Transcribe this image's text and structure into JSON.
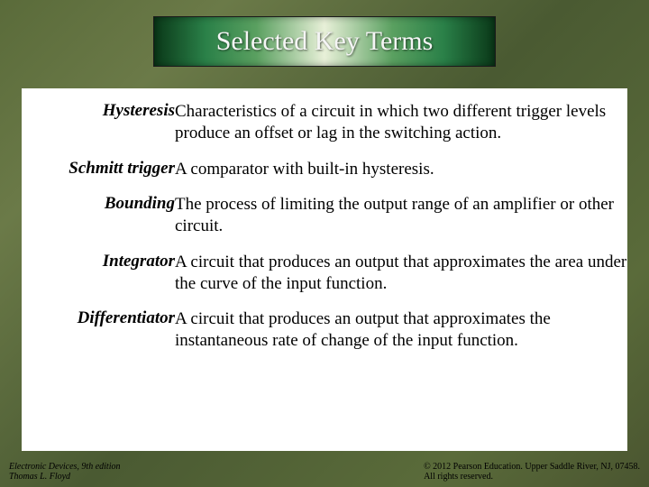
{
  "title": "Selected Key Terms",
  "terms": [
    {
      "term": "Hysteresis",
      "definition": "Characteristics of a circuit in which two different trigger levels produce an offset or lag in the switching action."
    },
    {
      "term": "Schmitt trigger",
      "definition": "A comparator with built-in hysteresis."
    },
    {
      "term": "Bounding",
      "definition": "The process of limiting the output range of an amplifier or other circuit."
    },
    {
      "term": "Integrator",
      "definition": "A circuit that produces an output that approximates the area under the curve of the input function."
    },
    {
      "term": "Differentiator",
      "definition": "A circuit that produces an output that approximates the instantaneous rate of change of the input function."
    }
  ],
  "footer": {
    "left_line1": "Electronic Devices, 9th edition",
    "left_line2": "Thomas L. Floyd",
    "right_line1": "© 2012 Pearson Education. Upper Saddle River, NJ, 07458.",
    "right_line2": "All rights reserved."
  },
  "styling": {
    "slide_width": 720,
    "slide_height": 540,
    "background_gradient": [
      "#5a6b3a",
      "#6b7a48",
      "#4a5a32"
    ],
    "title_banner_gradient": [
      "#0a3818",
      "#2a8048",
      "#5aa060",
      "#e8f0d8",
      "#5aa060",
      "#2a8048",
      "#0a3818"
    ],
    "title_font_size": 30,
    "title_color": "#f5f5f5",
    "content_background": "#ffffff",
    "term_font_size": 19,
    "term_font_style": "bold italic",
    "definition_font_size": 19,
    "footer_font_size": 10,
    "font_family": "Times New Roman"
  }
}
